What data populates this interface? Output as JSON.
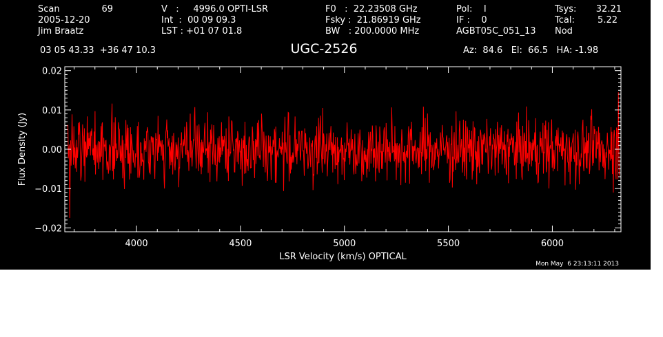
{
  "header": {
    "scan_label": "Scan",
    "scan_number": "69",
    "date": "2005-12-20",
    "observer": "Jim Braatz",
    "v_line": "V   :     4996.0 OPTI-LSR",
    "int_line": "Int  :  00 09 09.3",
    "lst_line": "LST : +01 07 01.8",
    "f0_line": "F0   :  22.23508 GHz",
    "fsky_line": "Fsky :  21.86919 GHz",
    "bw_line": "BW   : 200.0000 MHz",
    "pol_line": "Pol:    I",
    "if_line": "IF :    0",
    "project": "AGBT05C_051_13",
    "tsys_label": "Tsys:",
    "tsys_value": "32.21",
    "tcal_label": "Tcal:",
    "tcal_value": "5.22",
    "proc": "Nod",
    "coords": "03 05 43.33  +36 47 10.3",
    "azelha": "Az:  84.6   El:  66.5   HA: -1.98"
  },
  "timestamp": "Mon May  6 23:13:11 2013",
  "colors": {
    "background": "#000000",
    "trace": "#ff0000",
    "axes": "#ffffff"
  },
  "chart_data": {
    "type": "line",
    "title": "UGC-2526",
    "xlabel": "LSR Velocity (km/s) OPTICAL",
    "ylabel": "Flux Density (Jy)",
    "xlim": [
      3655,
      6330
    ],
    "ylim": [
      -0.021,
      0.021
    ],
    "xticks": [
      4000,
      4500,
      5000,
      5500,
      6000
    ],
    "xtick_labels": [
      "4000",
      "4500",
      "5000",
      "5500",
      "6000"
    ],
    "yticks": [
      -0.02,
      -0.01,
      0.0,
      0.01,
      0.02
    ],
    "ytick_labels": [
      "−0.02",
      "−0.01",
      "0.00",
      "0.01",
      "0.02"
    ],
    "series": [
      {
        "x_start": 3670,
        "x_end": 6322,
        "n_points": 1200,
        "mean": 0.0,
        "rms": 0.004,
        "min": -0.0175,
        "max": 0.0145
      }
    ],
    "grid": false
  }
}
